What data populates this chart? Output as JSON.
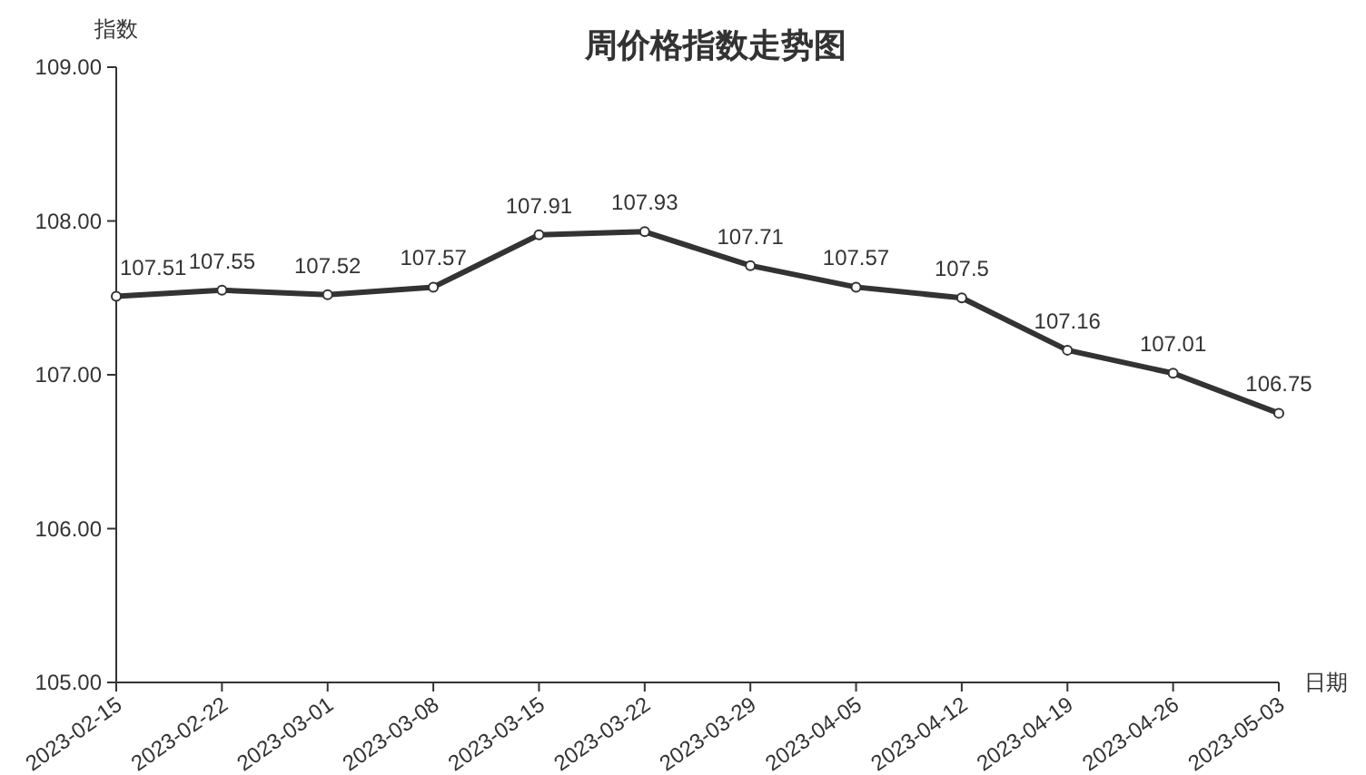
{
  "chart_data": {
    "type": "line",
    "title": "周价格指数走势图",
    "xlabel": "日期",
    "ylabel": "指数",
    "categories": [
      "2023-02-15",
      "2023-02-22",
      "2023-03-01",
      "2023-03-08",
      "2023-03-15",
      "2023-03-22",
      "2023-03-29",
      "2023-04-05",
      "2023-04-12",
      "2023-04-19",
      "2023-04-26",
      "2023-05-03"
    ],
    "series": [
      {
        "color": "#333333",
        "values": [
          107.51,
          107.55,
          107.52,
          107.57,
          107.91,
          107.93,
          107.71,
          107.57,
          107.5,
          107.16,
          107.01,
          106.75
        ]
      }
    ],
    "ylim": [
      105,
      109
    ],
    "yticks": [
      {
        "value": 105,
        "label": "105.00"
      },
      {
        "value": 106,
        "label": "106.00"
      },
      {
        "value": 107,
        "label": "107.00"
      },
      {
        "value": 108,
        "label": "108.00"
      },
      {
        "value": 109,
        "label": "109.00"
      }
    ],
    "data_labels": true,
    "marker": "circle",
    "line_style": "solid",
    "grid": false
  }
}
